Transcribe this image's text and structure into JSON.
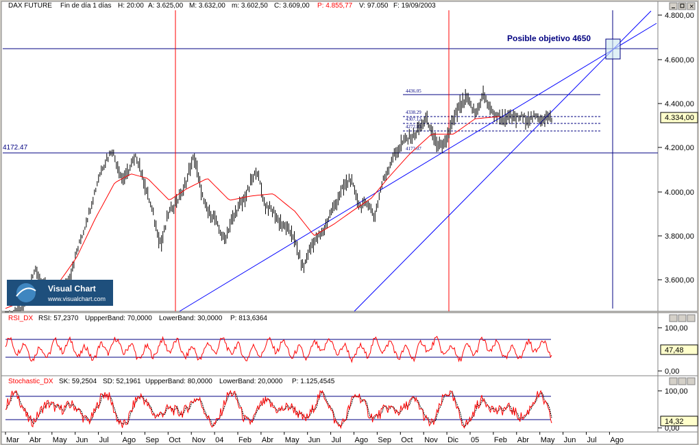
{
  "price_panel": {
    "header": {
      "symbol": "DAX FUTURE",
      "period": "Fin de día 1 días",
      "hour": "H: 20:00",
      "open": "A: 3.625,00",
      "high": "M: 3.632,00",
      "low": "m: 3.602,50",
      "close": "C: 3.609,00",
      "p": "P: 4.855,77",
      "volume": "V: 97.050",
      "date": "F: 19/09/2003"
    },
    "annotation": "Posible objetivo 4650",
    "left_level_label": "4172.47",
    "level_labels": [
      "4436.05",
      "4338.29",
      "4307.12",
      "4272.83",
      "4173.07"
    ],
    "last_value": "4.334,00",
    "y_ticks": [
      "4.800,00",
      "4.600,00",
      "4.400,00",
      "4.200,00",
      "4.000,00",
      "3.800,00",
      "3.600,00"
    ]
  },
  "rsi_panel": {
    "header": {
      "name": "RSI_DX",
      "value": "RSI: 57,2370",
      "upper": "UppperBand: 70,0000",
      "lower": "LowerBand: 30,0000",
      "p": "P: 813,6364"
    },
    "y_ticks": [
      "100,00",
      "0,00"
    ],
    "last_value": "47,48"
  },
  "stoch_panel": {
    "header": {
      "name": "Stochastic_DX",
      "sk": "SK: 59,2504",
      "sd": "SD: 52,1961",
      "upper": "UppperBand: 80,0000",
      "lower": "LowerBand: 20,0000",
      "p": "P: 1.125,4545"
    },
    "y_ticks": [
      "100,00",
      "0,00"
    ],
    "last_value": "14,32"
  },
  "x_axis": {
    "labels": [
      "Mar",
      "Abr",
      "May",
      "Jun",
      "Jul",
      "Ago",
      "Sep",
      "Oct",
      "Nov",
      "04",
      "Feb",
      "Abr",
      "May",
      "Jun",
      "Jul",
      "Ago",
      "Sep",
      "Oct",
      "Nov",
      "Dic",
      "05",
      "Feb",
      "Abr",
      "May",
      "Jun",
      "Jul",
      "Ago"
    ]
  },
  "logo": {
    "title": "Visual Chart",
    "url": "www.visualchart.com"
  },
  "colors": {
    "background": "#ffffff",
    "frame": "#d4d0c8",
    "price_bars": "#000000",
    "moving_average": "#ff0000",
    "trendlines": "#0000ff",
    "vertical_markers": "#ff0000",
    "indicator_line": "#ff0000",
    "annotation": "#000080"
  },
  "chart_data": {
    "type": "candlestick",
    "title": "DAX FUTURE",
    "x_range": [
      "2003-03",
      "2005-08"
    ],
    "ylim": [
      3450,
      4850
    ],
    "grid": false,
    "series": [
      {
        "name": "price",
        "points": [
          [
            0.0,
            3420
          ],
          [
            0.03,
            3460
          ],
          [
            0.055,
            3650
          ],
          [
            0.075,
            3560
          ],
          [
            0.09,
            3520
          ],
          [
            0.115,
            3600
          ],
          [
            0.15,
            3880
          ],
          [
            0.175,
            4100
          ],
          [
            0.195,
            4190
          ],
          [
            0.215,
            4050
          ],
          [
            0.24,
            4160
          ],
          [
            0.26,
            3990
          ],
          [
            0.285,
            3760
          ],
          [
            0.3,
            3910
          ],
          [
            0.325,
            4000
          ],
          [
            0.345,
            4160
          ],
          [
            0.365,
            3930
          ],
          [
            0.38,
            3890
          ],
          [
            0.4,
            3780
          ],
          [
            0.42,
            3900
          ],
          [
            0.44,
            3980
          ],
          [
            0.46,
            4100
          ],
          [
            0.475,
            3940
          ],
          [
            0.49,
            3910
          ],
          [
            0.505,
            3850
          ],
          [
            0.525,
            3810
          ],
          [
            0.545,
            3650
          ],
          [
            0.56,
            3760
          ],
          [
            0.58,
            3810
          ],
          [
            0.595,
            3900
          ],
          [
            0.615,
            4000
          ],
          [
            0.63,
            4060
          ],
          [
            0.65,
            3930
          ],
          [
            0.665,
            3950
          ],
          [
            0.675,
            3880
          ],
          [
            0.69,
            4040
          ],
          [
            0.71,
            4160
          ],
          [
            0.73,
            4230
          ],
          [
            0.75,
            4260
          ],
          [
            0.77,
            4330
          ],
          [
            0.785,
            4240
          ],
          [
            0.8,
            4190
          ],
          [
            0.815,
            4290
          ],
          [
            0.83,
            4380
          ],
          [
            0.845,
            4420
          ],
          [
            0.86,
            4350
          ],
          [
            0.875,
            4440
          ],
          [
            0.89,
            4360
          ],
          [
            0.905,
            4334
          ]
        ]
      },
      {
        "name": "moving_average",
        "points": [
          [
            0.0,
            3470
          ],
          [
            0.05,
            3520
          ],
          [
            0.09,
            3560
          ],
          [
            0.13,
            3700
          ],
          [
            0.165,
            3880
          ],
          [
            0.2,
            4040
          ],
          [
            0.23,
            4080
          ],
          [
            0.26,
            4060
          ],
          [
            0.3,
            3960
          ],
          [
            0.33,
            4010
          ],
          [
            0.37,
            4060
          ],
          [
            0.41,
            3960
          ],
          [
            0.45,
            3980
          ],
          [
            0.49,
            3990
          ],
          [
            0.53,
            3910
          ],
          [
            0.565,
            3800
          ],
          [
            0.6,
            3850
          ],
          [
            0.64,
            3920
          ],
          [
            0.67,
            3970
          ],
          [
            0.7,
            4060
          ],
          [
            0.74,
            4170
          ],
          [
            0.78,
            4260
          ],
          [
            0.82,
            4260
          ],
          [
            0.86,
            4330
          ],
          [
            0.905,
            4340
          ]
        ]
      }
    ],
    "levels": [
      4650,
      4436.05,
      4338.29,
      4307.12,
      4272.83,
      4173.07
    ],
    "indicators": [
      {
        "name": "RSI_DX",
        "upper": 70,
        "lower": 30,
        "last": 47.48
      },
      {
        "name": "Stochastic_DX",
        "upper": 80,
        "lower": 20,
        "last": 14.32
      }
    ]
  }
}
